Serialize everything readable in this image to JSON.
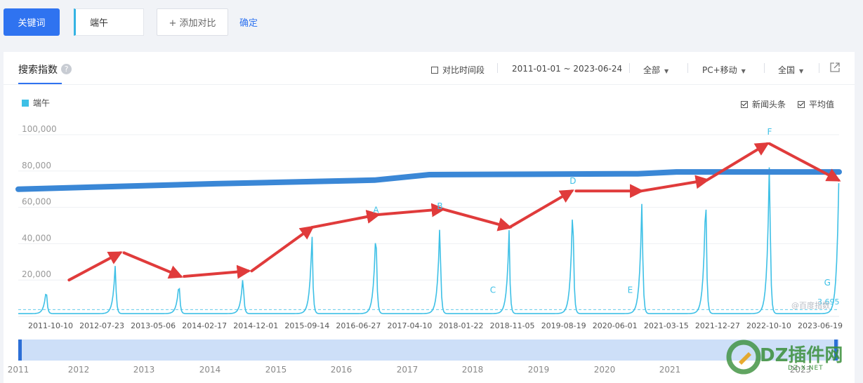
{
  "topbar": {
    "keyword_tab_label": "关键词",
    "keyword_value": "端午",
    "add_compare_label": "+ 添加对比",
    "confirm_label": "确定"
  },
  "panel": {
    "tab_title": "搜索指数",
    "help_icon_label": "?",
    "compare_period_label": "对比时间段",
    "date_range": "2011-01-01 ~ 2023-06-24",
    "source_filter": "全部",
    "device_filter": "PC+移动",
    "region_filter": "全国",
    "news_headline_label": "新闻头条",
    "average_label": "平均值",
    "legend_label": "端午",
    "average_value_label": "3,695",
    "chart_watermark": "@百度指数"
  },
  "colors": {
    "accent_blue": "#2f73f0",
    "series_line": "#3ec0e6",
    "trend_band": "#3a87d6",
    "arrow_red": "#e03b3b",
    "navigator_fill": "#cddff8",
    "navigator_handle": "#2c6fd6"
  },
  "icons": {
    "help": "question-circle-icon",
    "dropdown": "caret-down-icon",
    "external_link": "external-link-icon"
  },
  "watermark": {
    "text": "DZ插件网",
    "subtext": "DZ-X.NET"
  },
  "chart_data": {
    "type": "line",
    "y_ticks": [
      "100,000",
      "80,000",
      "60,000",
      "40,000",
      "20,000"
    ],
    "ylim": [
      0,
      100000
    ],
    "x_tick_labels": [
      "2011-10-10",
      "2012-07-23",
      "2013-05-06",
      "2014-02-17",
      "2014-12-01",
      "2015-09-14",
      "2016-06-27",
      "2017-04-10",
      "2018-01-22",
      "2018-11-05",
      "2019-08-19",
      "2020-06-01",
      "2021-03-15",
      "2021-12-27",
      "2022-10-10",
      "2023-06-19"
    ],
    "navigator_years": [
      "2011",
      "2012",
      "2013",
      "2014",
      "2015",
      "2016",
      "2017",
      "2018",
      "2019",
      "2020",
      "2021",
      "2023"
    ],
    "series": [
      {
        "name": "端午",
        "peaks": [
          {
            "date": "2011-06-06",
            "value": 16000
          },
          {
            "date": "2012-06-23",
            "value": 30000
          },
          {
            "date": "2013-06-12",
            "value": 20000
          },
          {
            "date": "2014-06-02",
            "value": 24000
          },
          {
            "date": "2015-06-20",
            "value": 47000
          },
          {
            "date": "2016-06-09",
            "value": 54000
          },
          {
            "date": "2017-05-30",
            "value": 56000
          },
          {
            "date": "2018-06-18",
            "value": 48000
          },
          {
            "date": "2019-06-07",
            "value": 69000
          },
          {
            "date": "2020-06-25",
            "value": 69000
          },
          {
            "date": "2021-06-14",
            "value": 74000
          },
          {
            "date": "2022-06-03",
            "value": 95000
          },
          {
            "date": "2023-06-22",
            "value": 74000
          }
        ],
        "baseline": 1500
      }
    ],
    "average": 3695,
    "trend_line": {
      "points": [
        {
          "date": "2011-01-01",
          "value": 70000
        },
        {
          "date": "2014-01-01",
          "value": 73000
        },
        {
          "date": "2016-06-01",
          "value": 75000
        },
        {
          "date": "2017-04-01",
          "value": 78000
        },
        {
          "date": "2020-06-01",
          "value": 78500
        },
        {
          "date": "2021-01-01",
          "value": 79500
        },
        {
          "date": "2023-06-24",
          "value": 79500
        }
      ]
    },
    "annotations": [
      {
        "label": "A",
        "date": "2016-06-09",
        "value": 57000
      },
      {
        "label": "B",
        "date": "2017-05-30",
        "value": 59000
      },
      {
        "label": "C",
        "date": "2018-03-20",
        "value": 13000
      },
      {
        "label": "D",
        "date": "2019-06-07",
        "value": 73000
      },
      {
        "label": "E",
        "date": "2020-04-20",
        "value": 13000
      },
      {
        "label": "F",
        "date": "2022-06-03",
        "value": 100000
      },
      {
        "label": "G",
        "date": "2023-04-20",
        "value": 17000
      }
    ],
    "arrows": [
      {
        "from": {
          "date": "2011-10-10",
          "value": 20000
        },
        "to": {
          "date": "2012-07-20",
          "value": 35000
        }
      },
      {
        "from": {
          "date": "2012-08-10",
          "value": 35000
        },
        "to": {
          "date": "2013-06-20",
          "value": 22000
        }
      },
      {
        "from": {
          "date": "2013-07-10",
          "value": 22000
        },
        "to": {
          "date": "2014-07-01",
          "value": 25000
        }
      },
      {
        "from": {
          "date": "2014-07-20",
          "value": 25000
        },
        "to": {
          "date": "2015-06-20",
          "value": 49000
        }
      },
      {
        "from": {
          "date": "2015-06-20",
          "value": 49000
        },
        "to": {
          "date": "2016-06-20",
          "value": 56000
        }
      },
      {
        "from": {
          "date": "2016-06-20",
          "value": 56000
        },
        "to": {
          "date": "2017-06-15",
          "value": 59000
        }
      },
      {
        "from": {
          "date": "2017-06-15",
          "value": 59000
        },
        "to": {
          "date": "2018-06-20",
          "value": 49000
        }
      },
      {
        "from": {
          "date": "2018-06-20",
          "value": 49000
        },
        "to": {
          "date": "2019-06-01",
          "value": 69000
        }
      },
      {
        "from": {
          "date": "2019-06-25",
          "value": 69000
        },
        "to": {
          "date": "2020-06-20",
          "value": 69000
        }
      },
      {
        "from": {
          "date": "2020-06-20",
          "value": 69000
        },
        "to": {
          "date": "2021-06-20",
          "value": 75000
        }
      },
      {
        "from": {
          "date": "2021-06-20",
          "value": 75000
        },
        "to": {
          "date": "2022-05-20",
          "value": 95000
        }
      },
      {
        "from": {
          "date": "2022-06-03",
          "value": 95000
        },
        "to": {
          "date": "2023-06-20",
          "value": 75000
        }
      }
    ]
  }
}
